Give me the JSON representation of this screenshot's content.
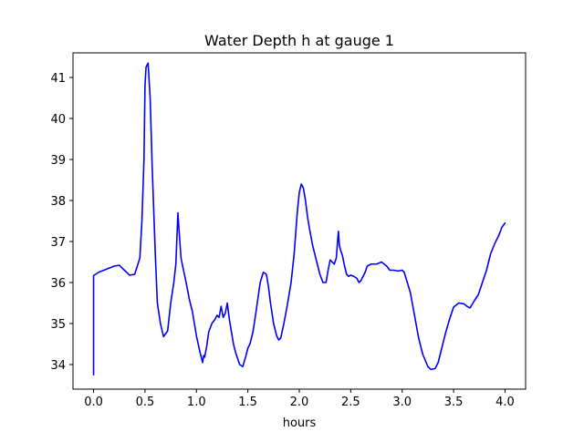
{
  "chart_data": {
    "type": "line",
    "title": "Water Depth h at gauge 1",
    "xlabel": "hours",
    "ylabel": "",
    "xlim": [
      -0.2,
      4.2
    ],
    "ylim": [
      33.4,
      41.6
    ],
    "xticks": [
      0.0,
      0.5,
      1.0,
      1.5,
      2.0,
      2.5,
      3.0,
      3.5,
      4.0
    ],
    "xtick_labels": [
      "0.0",
      "0.5",
      "1.0",
      "1.5",
      "2.0",
      "2.5",
      "3.0",
      "3.5",
      "4.0"
    ],
    "yticks": [
      34,
      35,
      36,
      37,
      38,
      39,
      40,
      41
    ],
    "ytick_labels": [
      "34",
      "35",
      "36",
      "37",
      "38",
      "39",
      "40",
      "41"
    ],
    "grid": false,
    "series": [
      {
        "color": "#0000ff",
        "x": [
          0.0,
          0.0,
          0.02,
          0.05,
          0.1,
          0.15,
          0.2,
          0.25,
          0.3,
          0.35,
          0.4,
          0.45,
          0.47,
          0.49,
          0.5,
          0.51,
          0.53,
          0.55,
          0.57,
          0.6,
          0.62,
          0.65,
          0.68,
          0.72,
          0.75,
          0.78,
          0.8,
          0.82,
          0.83,
          0.85,
          0.87,
          0.9,
          0.93,
          0.96,
          1.0,
          1.03,
          1.06,
          1.07,
          1.08,
          1.1,
          1.12,
          1.15,
          1.18,
          1.2,
          1.22,
          1.24,
          1.26,
          1.28,
          1.3,
          1.32,
          1.34,
          1.36,
          1.38,
          1.4,
          1.42,
          1.45,
          1.48,
          1.5,
          1.52,
          1.55,
          1.58,
          1.62,
          1.65,
          1.68,
          1.7,
          1.72,
          1.75,
          1.78,
          1.8,
          1.82,
          1.85,
          1.88,
          1.9,
          1.92,
          1.95,
          1.98,
          2.0,
          2.02,
          2.04,
          2.06,
          2.08,
          2.1,
          2.13,
          2.16,
          2.2,
          2.23,
          2.26,
          2.28,
          2.3,
          2.32,
          2.34,
          2.36,
          2.38,
          2.39,
          2.4,
          2.42,
          2.44,
          2.46,
          2.48,
          2.5,
          2.53,
          2.56,
          2.58,
          2.6,
          2.62,
          2.64,
          2.66,
          2.7,
          2.75,
          2.8,
          2.85,
          2.88,
          2.92,
          2.96,
          3.0,
          3.02,
          3.05,
          3.08,
          3.12,
          3.16,
          3.2,
          3.25,
          3.28,
          3.32,
          3.35,
          3.38,
          3.42,
          3.46,
          3.5,
          3.55,
          3.6,
          3.63,
          3.66,
          3.7,
          3.74,
          3.78,
          3.82,
          3.86,
          3.9,
          3.94,
          3.97,
          4.0
        ],
        "y": [
          33.75,
          36.17,
          36.2,
          36.25,
          36.3,
          36.35,
          36.4,
          36.42,
          36.3,
          36.18,
          36.2,
          36.6,
          37.5,
          39.0,
          40.8,
          41.25,
          41.35,
          40.5,
          38.8,
          36.7,
          35.5,
          35.0,
          34.68,
          34.82,
          35.5,
          36.0,
          36.45,
          37.7,
          37.3,
          36.6,
          36.35,
          36.0,
          35.6,
          35.3,
          34.7,
          34.35,
          34.05,
          34.22,
          34.18,
          34.45,
          34.8,
          35.0,
          35.1,
          35.2,
          35.15,
          35.42,
          35.15,
          35.25,
          35.5,
          35.1,
          34.8,
          34.5,
          34.3,
          34.15,
          34.0,
          33.95,
          34.2,
          34.4,
          34.5,
          34.8,
          35.3,
          36.0,
          36.25,
          36.2,
          35.9,
          35.5,
          35.0,
          34.7,
          34.6,
          34.65,
          35.0,
          35.4,
          35.7,
          36.0,
          36.7,
          37.7,
          38.2,
          38.4,
          38.3,
          38.0,
          37.6,
          37.3,
          36.9,
          36.6,
          36.2,
          36.0,
          36.0,
          36.3,
          36.55,
          36.5,
          36.45,
          36.6,
          37.25,
          36.9,
          36.8,
          36.65,
          36.4,
          36.2,
          36.15,
          36.18,
          36.15,
          36.1,
          36.0,
          36.05,
          36.15,
          36.25,
          36.4,
          36.45,
          36.45,
          36.5,
          36.4,
          36.3,
          36.3,
          36.28,
          36.3,
          36.25,
          36.0,
          35.75,
          35.2,
          34.65,
          34.25,
          33.95,
          33.88,
          33.9,
          34.05,
          34.35,
          34.75,
          35.1,
          35.4,
          35.5,
          35.48,
          35.42,
          35.38,
          35.55,
          35.7,
          36.0,
          36.3,
          36.7,
          36.95,
          37.15,
          37.35,
          37.45
        ]
      }
    ]
  }
}
